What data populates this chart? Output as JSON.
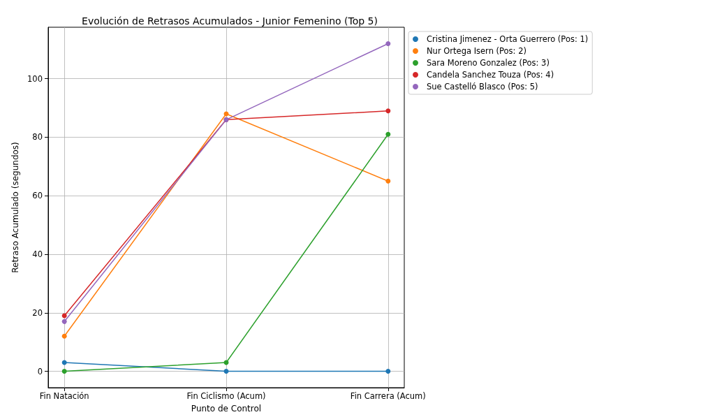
{
  "chart_data": {
    "type": "line",
    "title": "Evolución de Retrasos Acumulados - Junior Femenino (Top 5)",
    "xlabel": "Punto de Control",
    "ylabel": "Retraso Acumulado (segundos)",
    "categories": [
      "Fin Natación",
      "Fin Ciclismo (Acum)",
      "Fin Carrera (Acum)"
    ],
    "series": [
      {
        "name": "Cristina Jimenez - Orta Guerrero (Pos: 1)",
        "color": "#1f77b4",
        "values": [
          3,
          0,
          0
        ]
      },
      {
        "name": "Nur Ortega Isern (Pos: 2)",
        "color": "#ff7f0e",
        "values": [
          12,
          88,
          65
        ]
      },
      {
        "name": "Sara Moreno Gonzalez (Pos: 3)",
        "color": "#2ca02c",
        "values": [
          0,
          3,
          81
        ]
      },
      {
        "name": "Candela Sanchez Touza (Pos: 4)",
        "color": "#d62728",
        "values": [
          19,
          86,
          89
        ]
      },
      {
        "name": "Sue Castelló Blasco (Pos: 5)",
        "color": "#9467bd",
        "values": [
          17,
          86,
          112
        ]
      }
    ],
    "ylim": [
      -5.6,
      117.6
    ],
    "yticks": [
      0,
      20,
      40,
      60,
      80,
      100
    ],
    "grid": true,
    "legend": "top right",
    "marker": "circle",
    "line_style": "solid"
  }
}
